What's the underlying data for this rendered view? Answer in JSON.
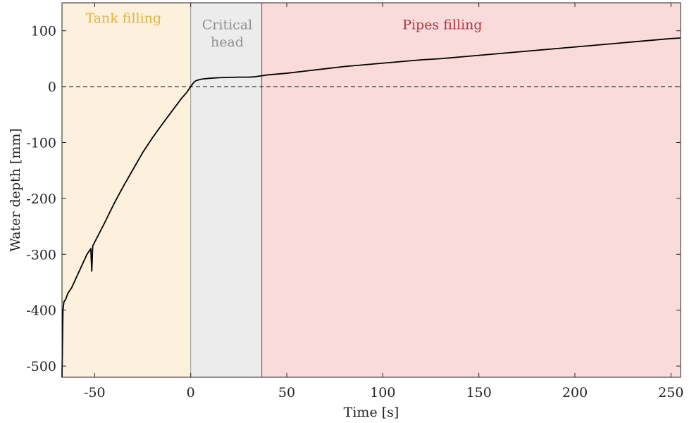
{
  "chart_data": {
    "type": "line",
    "xlabel": "Time [s]",
    "ylabel": "Water depth [mm]",
    "xlim": [
      -67,
      255
    ],
    "ylim": [
      -520,
      150
    ],
    "xticks": [
      -50,
      0,
      50,
      100,
      150,
      200,
      250
    ],
    "yticks": [
      100,
      0,
      -100,
      -200,
      -300,
      -400,
      -500
    ],
    "grid": false,
    "reference_line": {
      "y": 0,
      "style": "dashed",
      "color": "#000000"
    },
    "regions": [
      {
        "label": "Tank filling",
        "x_start": -67,
        "x_end": 0,
        "fill": "#fdf0dc",
        "label_color": "#e0b43a",
        "border_color": "#e8b531"
      },
      {
        "label": "Critical\nhead",
        "x_start": 0,
        "x_end": 37,
        "fill": "#ececec",
        "label_color": "#8f8f8f",
        "border_color": "#9a9a9a"
      },
      {
        "label": "Pipes filling",
        "x_start": 37,
        "x_end": 255,
        "fill": "#f9dbdb",
        "label_color": "#b5343f",
        "border_color": "#b5343f"
      }
    ],
    "series": [
      {
        "color": "#000000",
        "x": [
          -67,
          -66.5,
          -66,
          -65,
          -64,
          -62,
          -60,
          -58,
          -56,
          -54,
          -52,
          -51.5,
          -51,
          -48,
          -45,
          -40,
          -35,
          -30,
          -25,
          -20,
          -15,
          -10,
          -5,
          -2,
          0,
          1,
          2,
          3,
          4,
          5,
          6,
          7,
          10,
          15,
          20,
          25,
          30,
          33,
          36,
          38,
          40,
          50,
          60,
          70,
          80,
          90,
          100,
          110,
          120,
          130,
          140,
          150,
          160,
          170,
          180,
          190,
          200,
          210,
          220,
          230,
          240,
          250,
          255
        ],
        "y": [
          -520,
          -400,
          -385,
          -380,
          -370,
          -360,
          -345,
          -330,
          -315,
          -300,
          -290,
          -330,
          -285,
          -265,
          -245,
          -210,
          -178,
          -148,
          -118,
          -92,
          -68,
          -45,
          -22,
          -10,
          0,
          5,
          9,
          11,
          12,
          13,
          13.5,
          14,
          15,
          16,
          16.5,
          17,
          17,
          17.5,
          19,
          20,
          21,
          24,
          28,
          32,
          36,
          39,
          42,
          45,
          48,
          50,
          53,
          56,
          59,
          62,
          65,
          68,
          71,
          74,
          77,
          80,
          83,
          86,
          87
        ]
      }
    ]
  }
}
